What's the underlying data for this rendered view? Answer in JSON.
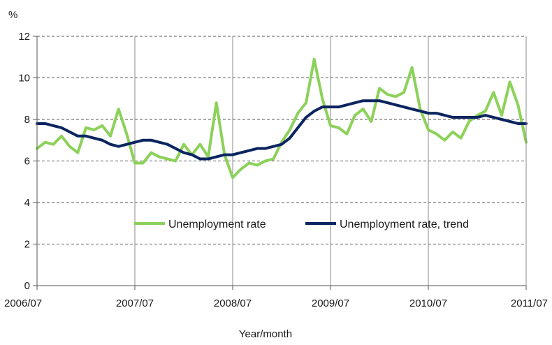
{
  "chart_data": {
    "type": "line",
    "title": "",
    "ylabel": "%",
    "xlabel": "Year/month",
    "ylim": [
      0,
      12
    ],
    "yticks": [
      0,
      2,
      4,
      6,
      8,
      10,
      12
    ],
    "x_range": [
      "2006/07",
      "2011/07"
    ],
    "xticks": [
      "2006/07",
      "2007/07",
      "2008/07",
      "2009/07",
      "2010/07",
      "2011/07"
    ],
    "grid": "horizontal dashed at each y tick, vertical solid at each x tick",
    "legend_position": "lower-right, inside plot",
    "series": [
      {
        "name": "Unemployment rate",
        "color": "#8cd15a",
        "x": [
          "2006/07",
          "2006/08",
          "2006/09",
          "2006/10",
          "2006/11",
          "2006/12",
          "2007/01",
          "2007/02",
          "2007/03",
          "2007/04",
          "2007/05",
          "2007/06",
          "2007/07",
          "2007/08",
          "2007/09",
          "2007/10",
          "2007/11",
          "2007/12",
          "2008/01",
          "2008/02",
          "2008/03",
          "2008/04",
          "2008/05",
          "2008/06",
          "2008/07",
          "2008/08",
          "2008/09",
          "2008/10",
          "2008/11",
          "2008/12",
          "2009/01",
          "2009/02",
          "2009/03",
          "2009/04",
          "2009/05",
          "2009/06",
          "2009/07",
          "2009/08",
          "2009/09",
          "2009/10",
          "2009/11",
          "2009/12",
          "2010/01",
          "2010/02",
          "2010/03",
          "2010/04",
          "2010/05",
          "2010/06",
          "2010/07",
          "2010/08",
          "2010/09",
          "2010/10",
          "2010/11",
          "2010/12",
          "2011/01",
          "2011/02",
          "2011/03",
          "2011/04",
          "2011/05",
          "2011/06",
          "2011/07"
        ],
        "values": [
          6.6,
          6.9,
          6.8,
          7.2,
          6.7,
          6.4,
          7.6,
          7.5,
          7.7,
          7.2,
          8.5,
          7.3,
          5.9,
          5.9,
          6.4,
          6.2,
          6.1,
          6.0,
          6.8,
          6.3,
          6.8,
          6.2,
          8.8,
          6.3,
          5.2,
          5.6,
          5.9,
          5.8,
          6.0,
          6.1,
          6.9,
          7.5,
          8.3,
          8.8,
          10.9,
          9.0,
          7.7,
          7.6,
          7.3,
          8.2,
          8.5,
          7.9,
          9.5,
          9.2,
          9.1,
          9.3,
          10.5,
          8.5,
          7.5,
          7.3,
          7.0,
          7.4,
          7.1,
          7.9,
          8.2,
          8.4,
          9.3,
          8.2,
          9.8,
          8.7,
          6.9
        ]
      },
      {
        "name": "Unemployment rate, trend",
        "color": "#0b2560",
        "x": [
          "2006/07",
          "2006/08",
          "2006/09",
          "2006/10",
          "2006/11",
          "2006/12",
          "2007/01",
          "2007/02",
          "2007/03",
          "2007/04",
          "2007/05",
          "2007/06",
          "2007/07",
          "2007/08",
          "2007/09",
          "2007/10",
          "2007/11",
          "2007/12",
          "2008/01",
          "2008/02",
          "2008/03",
          "2008/04",
          "2008/05",
          "2008/06",
          "2008/07",
          "2008/08",
          "2008/09",
          "2008/10",
          "2008/11",
          "2008/12",
          "2009/01",
          "2009/02",
          "2009/03",
          "2009/04",
          "2009/05",
          "2009/06",
          "2009/07",
          "2009/08",
          "2009/09",
          "2009/10",
          "2009/11",
          "2009/12",
          "2010/01",
          "2010/02",
          "2010/03",
          "2010/04",
          "2010/05",
          "2010/06",
          "2010/07",
          "2010/08",
          "2010/09",
          "2010/10",
          "2010/11",
          "2010/12",
          "2011/01",
          "2011/02",
          "2011/03",
          "2011/04",
          "2011/05",
          "2011/06",
          "2011/07"
        ],
        "values": [
          7.8,
          7.8,
          7.7,
          7.6,
          7.4,
          7.2,
          7.2,
          7.1,
          7.0,
          6.8,
          6.7,
          6.8,
          6.9,
          7.0,
          7.0,
          6.9,
          6.8,
          6.6,
          6.4,
          6.3,
          6.1,
          6.1,
          6.2,
          6.3,
          6.3,
          6.4,
          6.5,
          6.6,
          6.6,
          6.7,
          6.8,
          7.1,
          7.6,
          8.1,
          8.4,
          8.6,
          8.6,
          8.6,
          8.7,
          8.8,
          8.9,
          8.9,
          8.9,
          8.8,
          8.7,
          8.6,
          8.5,
          8.4,
          8.3,
          8.3,
          8.2,
          8.1,
          8.1,
          8.1,
          8.1,
          8.2,
          8.1,
          8.0,
          7.9,
          7.8,
          7.8
        ]
      }
    ]
  }
}
